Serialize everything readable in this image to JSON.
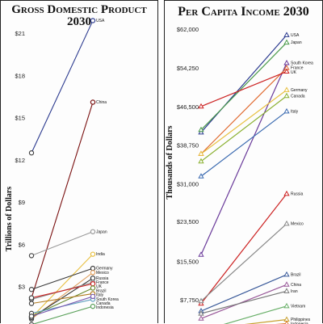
{
  "chart_data": [
    {
      "type": "line",
      "title": "Gross Domestic Product 2030",
      "ylabel": "Trillions of Dollars",
      "yticks": [
        "$3",
        "$6",
        "$9",
        "$12",
        "$15",
        "$18",
        "$21"
      ],
      "ylim": [
        0,
        22.5
      ],
      "series": [
        {
          "name": "USA",
          "start": 12.5,
          "end": 21.9,
          "color": "#2b3a8f"
        },
        {
          "name": "China",
          "start": 2.2,
          "end": 16.1,
          "color": "#7a1010"
        },
        {
          "name": "Japan",
          "start": 5.2,
          "end": 6.9,
          "color": "#9a9a9a"
        },
        {
          "name": "India",
          "start": 0.8,
          "end": 5.3,
          "color": "#e8c040"
        },
        {
          "name": "Germany",
          "start": 2.8,
          "end": 4.3,
          "color": "#3a3a3a"
        },
        {
          "name": "Mexico",
          "start": 0.7,
          "end": 4.0,
          "color": "#e0a060"
        },
        {
          "name": "Russia",
          "start": 0.8,
          "end": 3.6,
          "color": "#333333"
        },
        {
          "name": "France",
          "start": 2.1,
          "end": 3.3,
          "color": "#888888"
        },
        {
          "name": "UK",
          "start": 2.2,
          "end": 3.2,
          "color": "#cc2222"
        },
        {
          "name": "Brazil",
          "start": 0.9,
          "end": 2.9,
          "color": "#6a8a30"
        },
        {
          "name": "Italy",
          "start": 1.8,
          "end": 2.5,
          "color": "#b07a20"
        },
        {
          "name": "Canada",
          "start": 1.1,
          "end": 2.1,
          "color": "#60a0c0"
        },
        {
          "name": "South Korea",
          "start": 0.9,
          "end": 2.3,
          "color": "#7a5ab0"
        },
        {
          "name": "Indonesia",
          "start": 0.3,
          "end": 1.6,
          "color": "#5aa05a"
        }
      ]
    },
    {
      "type": "line",
      "title": "Per Capita Income 2030",
      "ylabel": "Thousands of Dollars",
      "yticks": [
        "$7,750",
        "$15,500",
        "$23,500",
        "$31,000",
        "$38,750",
        "$46,500",
        "$54,250",
        "$62,000"
      ],
      "ylim": [
        0,
        62000
      ],
      "series": [
        {
          "name": "USA",
          "start": 41300,
          "end": 60800,
          "color": "#2b3a8f"
        },
        {
          "name": "Japan",
          "start": 41800,
          "end": 59300,
          "color": "#4a9a4a"
        },
        {
          "name": "South Korea",
          "start": 16800,
          "end": 55200,
          "color": "#6a3a9a"
        },
        {
          "name": "France",
          "start": 37000,
          "end": 54200,
          "color": "#e06a30"
        },
        {
          "name": "UK",
          "start": 46500,
          "end": 53500,
          "color": "#cc2222"
        },
        {
          "name": "Germany",
          "start": 37000,
          "end": 49800,
          "color": "#e8c040"
        },
        {
          "name": "Canada",
          "start": 35500,
          "end": 48600,
          "color": "#8ab030"
        },
        {
          "name": "Italy",
          "start": 32500,
          "end": 45500,
          "color": "#3a6ab0"
        },
        {
          "name": "Russia",
          "start": 7000,
          "end": 29000,
          "color": "#cc2222"
        },
        {
          "name": "Mexico",
          "start": 7500,
          "end": 23000,
          "color": "#888888"
        },
        {
          "name": "Brazil",
          "start": 5500,
          "end": 12800,
          "color": "#3a5a9a"
        },
        {
          "name": "China",
          "start": 4000,
          "end": 10800,
          "color": "#9a5a9a"
        },
        {
          "name": "Iran",
          "start": 5000,
          "end": 9500,
          "color": "#777777"
        },
        {
          "name": "Vietnam",
          "start": 1500,
          "end": 6500,
          "color": "#6ab06a"
        },
        {
          "name": "Philippines",
          "start": 1800,
          "end": 3800,
          "color": "#c8a030"
        },
        {
          "name": "Indonesia",
          "start": 1600,
          "end": 3000,
          "color": "#e07a30"
        }
      ]
    }
  ]
}
